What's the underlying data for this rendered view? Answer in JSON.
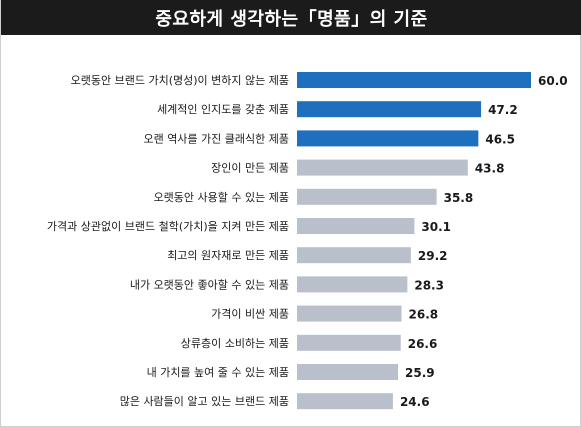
{
  "title": "중요하게 생각하는「명품」의 기준",
  "colors": {
    "title_bg": "#1b1b1b",
    "title_text": "#ffffff",
    "highlight_bar": "#1f6fbf",
    "regular_bar": "#b9c0cc"
  },
  "chart_data": {
    "type": "bar",
    "orientation": "horizontal",
    "categories": [
      "오랫동안 브랜드 가치(명성)이 변하지 않는 제품",
      "세계적인 인지도를 갖춘 제품",
      "오랜 역사를 가진 클래식한 제품",
      "장인이 만든 제품",
      "오랫동안 사용할 수 있는 제품",
      "가격과 상관없이 브랜드 철학(가치)을 지켜 만든 제품",
      "최고의 원자재로 만든 제품",
      "내가 오랫동안 좋아할 수 있는 제품",
      "가격이 비싼 제품",
      "상류층이 소비하는 제품",
      "내 가치를 높여 줄 수 있는 제품",
      "많은 사람들이 알고 있는 브랜드 제품"
    ],
    "values": [
      60.0,
      47.2,
      46.5,
      43.8,
      35.8,
      30.1,
      29.2,
      28.3,
      26.8,
      26.6,
      25.9,
      24.6
    ],
    "value_labels": [
      "60.0",
      "47.2",
      "46.5",
      "43.8",
      "35.8",
      "30.1",
      "29.2",
      "28.3",
      "26.8",
      "26.6",
      "25.9",
      "24.6"
    ],
    "highlighted_count": 3,
    "xlim": [
      0,
      60
    ],
    "grid": false,
    "legend": "none"
  }
}
